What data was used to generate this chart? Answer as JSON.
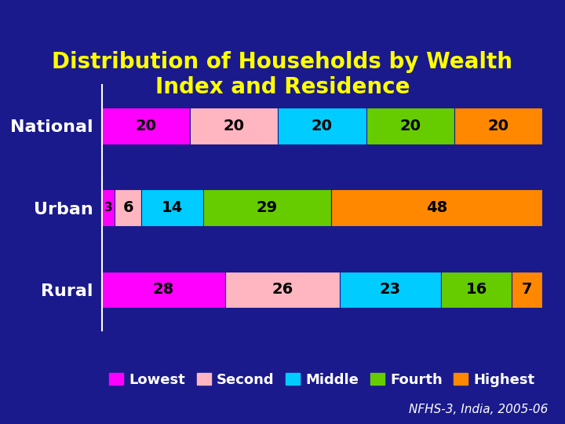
{
  "title": "Distribution of Households by Wealth\nIndex and Residence",
  "categories": [
    "National",
    "Urban",
    "Rural"
  ],
  "series": {
    "Lowest": [
      20,
      3,
      28
    ],
    "Second": [
      20,
      6,
      26
    ],
    "Middle": [
      20,
      14,
      23
    ],
    "Fourth": [
      20,
      29,
      16
    ],
    "Highest": [
      20,
      48,
      7
    ]
  },
  "colors": {
    "Lowest": "#FF00FF",
    "Second": "#FFB6C1",
    "Middle": "#00CCFF",
    "Fourth": "#66CC00",
    "Highest": "#FF8800"
  },
  "background_color": "#1A1A8C",
  "title_color": "#FFFF00",
  "label_color": "#FFFFFF",
  "bar_label_color": "#000000",
  "source_text": "NFHS-3, India, 2005-06",
  "source_color": "#FFFFFF",
  "title_fontsize": 20,
  "label_fontsize": 16,
  "bar_label_fontsize": 14,
  "legend_fontsize": 13,
  "source_fontsize": 11
}
